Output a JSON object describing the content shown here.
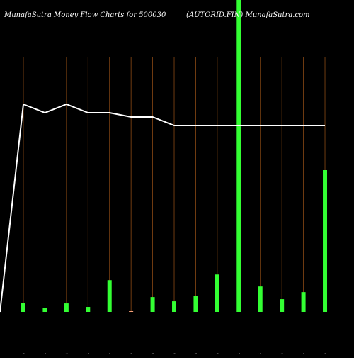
{
  "header": {
    "left_title": "MunafaSutra  Money Flow  Charts for 500030",
    "right_title": "(AUTORID.FIN) MunafaSutra.com"
  },
  "colors": {
    "background": "#000000",
    "gridline": "#8B4A14",
    "bar_positive": "#33FF33",
    "bar_negative": "#F4A07A",
    "line": "#FFFFFF",
    "tick_text": "#D8D8D8"
  },
  "chart_data": {
    "type": "bar",
    "categories": [
      "Fri 07 Feb",
      "Thu 06 Feb",
      "Wed 05 Feb",
      "Tue 04 Feb",
      "Mon 03 Feb",
      "Sat 01 Feb",
      "Fri 31 Jan",
      "Thu 30 Jan",
      "Wed 29 Jan",
      "Tue 28 Jan",
      "Mon 27 Jan",
      "Fri 24 Jan",
      "Thu 23 Jan",
      "Wed 22 Jan",
      "Tue 21 Jan"
    ],
    "tick_labels": [
      "Fri 07.42%",
      "Fri 11.47%",
      "Fri 03.26%",
      "Fri 72.23%",
      "Fri 7.23 -1%",
      "Sat 0.63%",
      "Fri 178.22%",
      "Fri 178.72%",
      "Fri 7.26.36%",
      "Fri 1.7 9.4%",
      "Fri 22.69.45%",
      "Fri 1.64.56%",
      "Fri 1.76.2%",
      "Fri 1.34.4%",
      "Fri 1.06%"
    ],
    "volume_values": [
      13,
      6,
      12,
      7,
      45,
      2,
      21,
      15,
      23,
      53,
      500,
      36,
      18,
      28,
      201
    ],
    "volume_colors": [
      "green",
      "green",
      "green",
      "green",
      "green",
      "orange",
      "green",
      "green",
      "green",
      "green",
      "green",
      "green",
      "green",
      "green",
      "green"
    ],
    "line_values": [
      100,
      94,
      100,
      94,
      94,
      91,
      91,
      85,
      85,
      85,
      85,
      85,
      85,
      85,
      85
    ],
    "line_start_value": 0,
    "ylim": [
      0,
      150
    ],
    "grid": true,
    "title": "",
    "xlabel": "",
    "ylabel": ""
  }
}
